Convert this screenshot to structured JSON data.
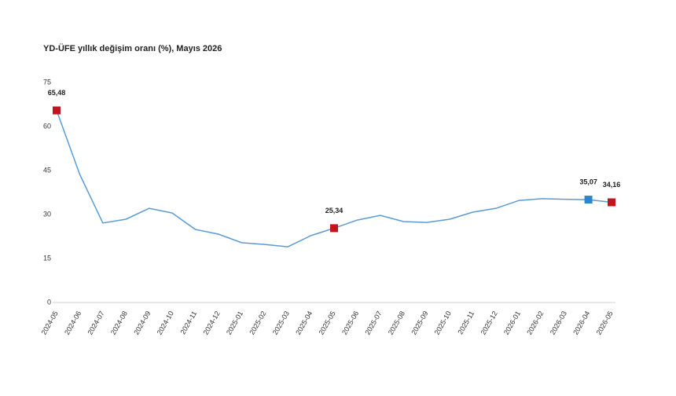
{
  "chart_data": {
    "type": "line",
    "title": "YD-ÜFE yıllık değişim oranı (%), Mayıs 2026",
    "categories": [
      "2024-05",
      "2024-06",
      "2024-07",
      "2024-08",
      "2024-09",
      "2024-10",
      "2024-11",
      "2024-12",
      "2025-01",
      "2025-02",
      "2025-03",
      "2025-04",
      "2025-05",
      "2025-06",
      "2025-07",
      "2025-08",
      "2025-09",
      "2025-10",
      "2025-11",
      "2025-12",
      "2026-01",
      "2026-02",
      "2026-03",
      "2026-04",
      "2026-05"
    ],
    "series": [
      {
        "color": "#5b9bd5",
        "values": [
          65.48,
          43.7,
          27.1,
          28.4,
          32.1,
          30.5,
          24.9,
          23.3,
          20.4,
          19.8,
          19.0,
          22.8,
          25.34,
          28.1,
          29.7,
          27.6,
          27.3,
          28.4,
          30.8,
          32.1,
          34.8,
          35.4,
          35.2,
          35.07,
          34.16
        ],
        "value_labels": [
          "65,48",
          null,
          null,
          null,
          null,
          null,
          null,
          null,
          null,
          null,
          null,
          null,
          "25,34",
          null,
          null,
          null,
          null,
          null,
          null,
          null,
          null,
          null,
          null,
          "35,07",
          "34,16"
        ],
        "marker_colors": [
          "#c0141e",
          null,
          null,
          null,
          null,
          null,
          null,
          null,
          null,
          null,
          null,
          null,
          "#c0141e",
          null,
          null,
          null,
          null,
          null,
          null,
          null,
          null,
          null,
          null,
          "#2e86c9",
          "#c0141e"
        ]
      }
    ],
    "ylim": [
      0,
      75
    ],
    "yticks": [
      0,
      15,
      30,
      45,
      60,
      75
    ],
    "grid": false
  }
}
